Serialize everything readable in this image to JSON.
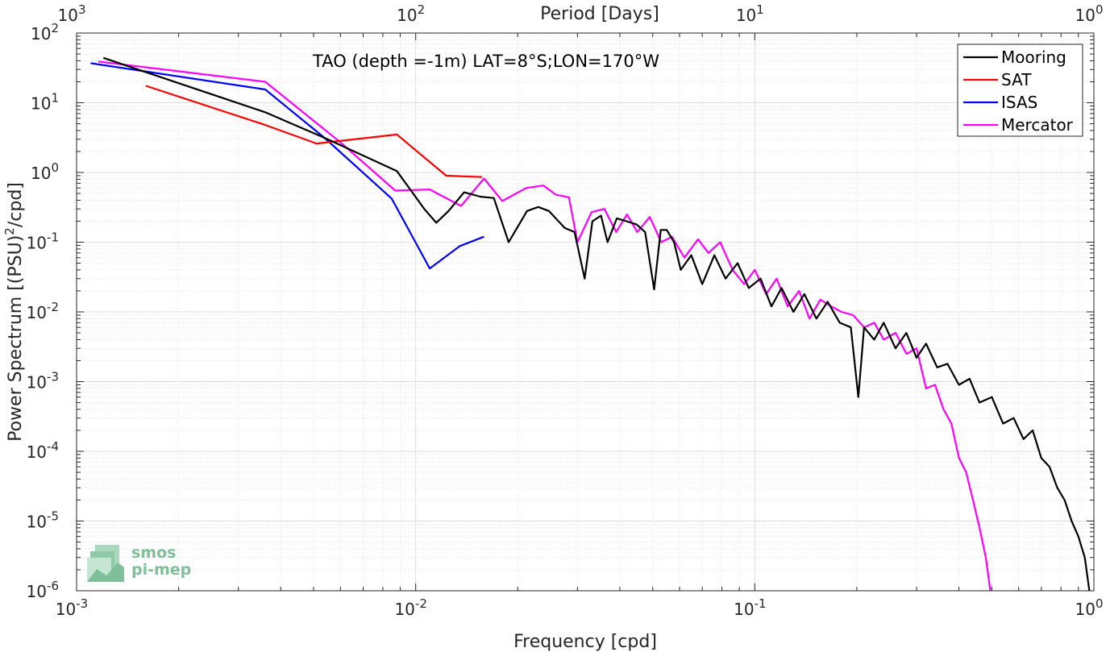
{
  "chart_data": {
    "type": "line",
    "title": "TAO (depth =-1m) LAT=8°S;LON=170°W",
    "xlabel": "Frequency [cpd]",
    "ylabel": "Power Spectrum [(PSU)²/cpd]",
    "top_xlabel": "Period [Days]",
    "x_scale": "log",
    "y_scale": "log",
    "xlim": [
      0.001,
      1
    ],
    "ylim": [
      1e-06,
      100
    ],
    "grid": true,
    "legend_position": "top-right",
    "x_ticks": [
      {
        "v": 0.001,
        "b": "10",
        "e": "-3"
      },
      {
        "v": 0.01,
        "b": "10",
        "e": "-2"
      },
      {
        "v": 0.1,
        "b": "10",
        "e": "-1"
      },
      {
        "v": 1,
        "b": "10",
        "e": "0"
      }
    ],
    "top_ticks": [
      {
        "v": 0.001,
        "b": "10",
        "e": "3"
      },
      {
        "v": 0.01,
        "b": "10",
        "e": "2"
      },
      {
        "v": 0.1,
        "b": "10",
        "e": "1"
      },
      {
        "v": 1,
        "b": "10",
        "e": "0"
      }
    ],
    "y_ticks": [
      {
        "v": 1e-06,
        "b": "10",
        "e": "-6"
      },
      {
        "v": 1e-05,
        "b": "10",
        "e": "-5"
      },
      {
        "v": 0.0001,
        "b": "10",
        "e": "-4"
      },
      {
        "v": 0.001,
        "b": "10",
        "e": "-3"
      },
      {
        "v": 0.01,
        "b": "10",
        "e": "-2"
      },
      {
        "v": 0.1,
        "b": "10",
        "e": "-1"
      },
      {
        "v": 1,
        "b": "10",
        "e": "0"
      },
      {
        "v": 10,
        "b": "10",
        "e": "1"
      },
      {
        "v": 100,
        "b": "10",
        "e": "2"
      }
    ],
    "series": [
      {
        "name": "Mooring",
        "color": "#000000",
        "x": [
          0.0012,
          0.0036,
          0.0055,
          0.0088,
          0.0106,
          0.0115,
          0.0125,
          0.0139,
          0.0155,
          0.017,
          0.0188,
          0.0213,
          0.023,
          0.0247,
          0.0275,
          0.0294,
          0.0315,
          0.0332,
          0.0352,
          0.0368,
          0.0392,
          0.0418,
          0.0448,
          0.0475,
          0.0505,
          0.0528,
          0.055,
          0.0578,
          0.0605,
          0.065,
          0.07,
          0.076,
          0.082,
          0.089,
          0.096,
          0.104,
          0.112,
          0.12,
          0.13,
          0.14,
          0.152,
          0.164,
          0.178,
          0.192,
          0.202,
          0.21,
          0.225,
          0.24,
          0.26,
          0.28,
          0.3,
          0.32,
          0.345,
          0.37,
          0.4,
          0.43,
          0.46,
          0.5,
          0.54,
          0.58,
          0.62,
          0.66,
          0.7,
          0.74,
          0.78,
          0.82,
          0.86,
          0.9,
          0.94,
          0.97
        ],
        "y": [
          44,
          7.3,
          3.0,
          1.05,
          0.3,
          0.19,
          0.28,
          0.52,
          0.45,
          0.43,
          0.1,
          0.28,
          0.32,
          0.28,
          0.16,
          0.14,
          0.03,
          0.2,
          0.24,
          0.1,
          0.22,
          0.2,
          0.18,
          0.14,
          0.021,
          0.15,
          0.15,
          0.1,
          0.04,
          0.065,
          0.025,
          0.065,
          0.03,
          0.05,
          0.022,
          0.03,
          0.012,
          0.022,
          0.01,
          0.018,
          0.008,
          0.014,
          0.007,
          0.006,
          0.0006,
          0.006,
          0.004,
          0.007,
          0.003,
          0.005,
          0.0022,
          0.0035,
          0.0016,
          0.0018,
          0.0009,
          0.0011,
          0.0005,
          0.0006,
          0.00025,
          0.0003,
          0.00015,
          0.0002,
          8e-05,
          6e-05,
          3e-05,
          2e-05,
          1e-05,
          6e-06,
          3e-06,
          1e-06
        ]
      },
      {
        "name": "SAT",
        "color": "#ff0000",
        "x": [
          0.0016,
          0.0036,
          0.0051,
          0.0088,
          0.0123,
          0.0157
        ],
        "y": [
          17.5,
          4.8,
          2.6,
          3.5,
          0.9,
          0.86
        ]
      },
      {
        "name": "ISAS",
        "color": "#0000ff",
        "x": [
          0.0011,
          0.0036,
          0.0054,
          0.0085,
          0.011,
          0.0135,
          0.0159
        ],
        "y": [
          37,
          15.5,
          3.1,
          0.42,
          0.042,
          0.088,
          0.12
        ]
      },
      {
        "name": "Mercator",
        "color": "#ff00ff",
        "x": [
          0.00116,
          0.0036,
          0.006,
          0.0087,
          0.011,
          0.0136,
          0.0159,
          0.018,
          0.0212,
          0.0238,
          0.0259,
          0.0283,
          0.03,
          0.033,
          0.036,
          0.039,
          0.042,
          0.045,
          0.049,
          0.053,
          0.057,
          0.062,
          0.068,
          0.073,
          0.079,
          0.086,
          0.093,
          0.1,
          0.108,
          0.116,
          0.125,
          0.135,
          0.145,
          0.156,
          0.168,
          0.18,
          0.195,
          0.21,
          0.225,
          0.24,
          0.26,
          0.28,
          0.3,
          0.32,
          0.34,
          0.36,
          0.38,
          0.4,
          0.42,
          0.44,
          0.46,
          0.48,
          0.495
        ],
        "y": [
          39,
          20,
          2.7,
          0.55,
          0.57,
          0.33,
          0.82,
          0.39,
          0.6,
          0.65,
          0.48,
          0.44,
          0.1,
          0.27,
          0.3,
          0.14,
          0.25,
          0.14,
          0.23,
          0.1,
          0.12,
          0.06,
          0.11,
          0.07,
          0.1,
          0.04,
          0.025,
          0.04,
          0.018,
          0.03,
          0.012,
          0.02,
          0.008,
          0.015,
          0.012,
          0.01,
          0.009,
          0.006,
          0.007,
          0.004,
          0.005,
          0.0025,
          0.003,
          0.0008,
          0.0009,
          0.0004,
          0.00025,
          8e-05,
          5e-05,
          2e-05,
          8e-06,
          3e-06,
          1e-06
        ]
      }
    ]
  },
  "logo": {
    "line1": "smos",
    "line2": "pi-mep"
  }
}
